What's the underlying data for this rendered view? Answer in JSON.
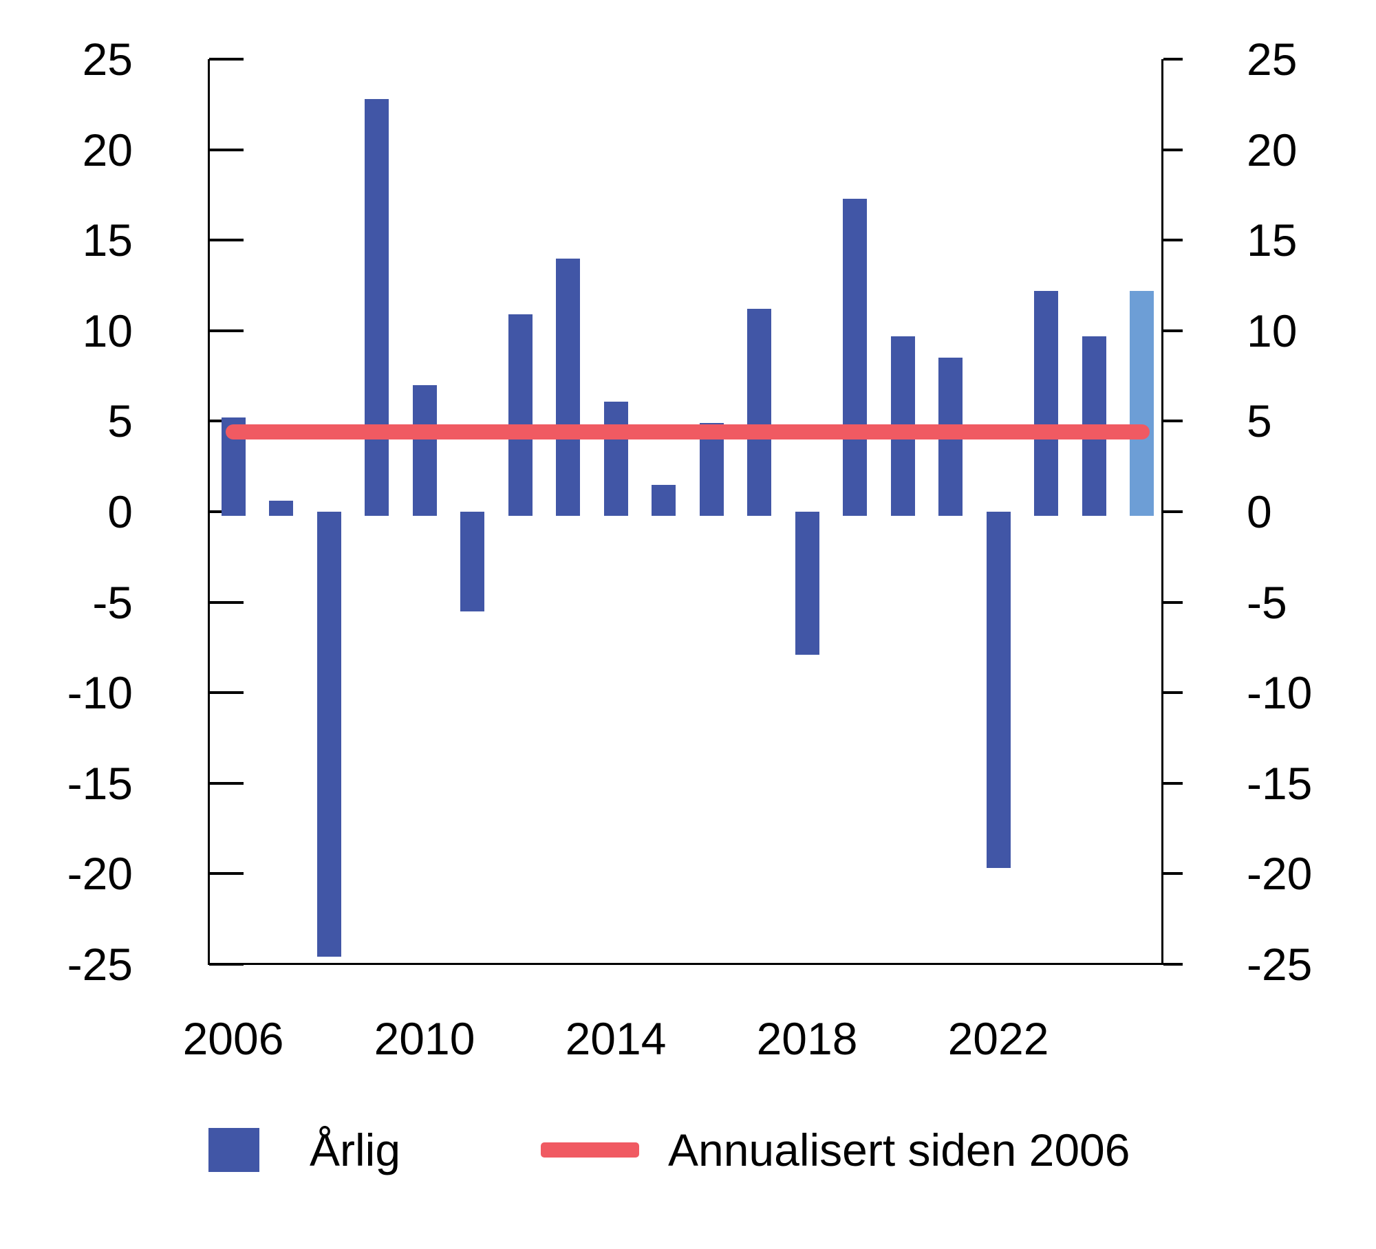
{
  "chart_data": {
    "type": "bar",
    "title": "",
    "xlabel": "",
    "ylabel": "",
    "years": [
      2006,
      2007,
      2008,
      2009,
      2010,
      2011,
      2012,
      2013,
      2014,
      2015,
      2016,
      2017,
      2018,
      2019,
      2020,
      2021,
      2022,
      2023,
      2024,
      2025
    ],
    "series": [
      {
        "name": "Årlig",
        "type": "bar",
        "values": [
          5.2,
          0.6,
          -24.6,
          22.8,
          7.0,
          -5.5,
          10.9,
          14.0,
          6.1,
          1.5,
          4.9,
          11.2,
          -7.9,
          17.3,
          9.7,
          8.5,
          -19.7,
          12.2,
          9.7,
          12.2
        ]
      },
      {
        "name": "Annualisert siden 2006",
        "type": "line",
        "value": 4.4
      }
    ],
    "highlight_year": 2025,
    "y_ticks": [
      25,
      20,
      15,
      10,
      5,
      0,
      -5,
      -10,
      -15,
      -20,
      -25
    ],
    "x_tick_labels": [
      "2006",
      "2010",
      "2014",
      "2018",
      "2022"
    ],
    "ylim": [
      -25,
      25
    ],
    "grid": false,
    "legend_position": "bottom",
    "dual_y_axis": true,
    "colors": {
      "bar": "#4156a6",
      "bar_highlight": "#6d9ed6",
      "line": "#f05a62",
      "axis": "#000000",
      "background": "#ffffff"
    }
  }
}
